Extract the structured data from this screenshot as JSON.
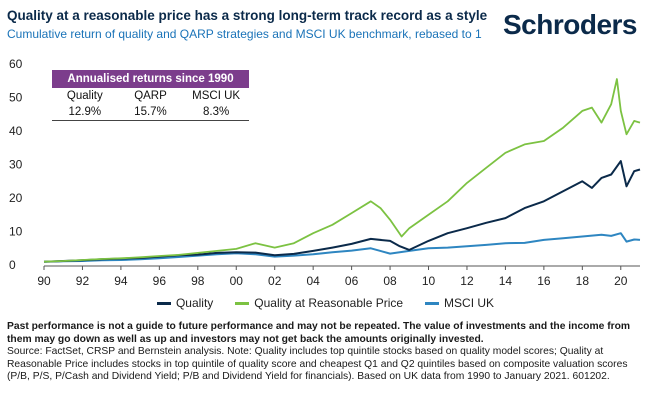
{
  "header": {
    "title": "Quality at a reasonable price has a strong long-term track record as a style",
    "subtitle": "Cumulative return of quality and QARP strategies and MSCI UK benchmark, rebased to 1",
    "brand": "Schroders"
  },
  "returns_table": {
    "heading": "Annualised returns since 1990",
    "columns": [
      "Quality",
      "QARP",
      "MSCI UK"
    ],
    "values": [
      "12.9%",
      "15.7%",
      "8.3%"
    ]
  },
  "footer": {
    "disclaimer": "Past performance is not a guide to future performance and may not be repeated. The value of investments and the income from them may go down as well as up and investors may not get back the amounts originally invested.",
    "source": "Source: FactSet, CRSP and Bernstein analysis. Note: Quality includes top quintile stocks based on quality model scores; Quality at Reasonable Price includes stocks in top quintile of quality score and cheapest Q1 and Q2 quintiles based on composite valuation scores (P/B, P/S, P/Cash and Dividend Yield; P/B and Dividend Yield for financials). Based on UK data from 1990 to January 2021. 601202."
  },
  "colors": {
    "quality": "#0b2a4a",
    "qarp": "#7cc242",
    "msci": "#2e86c1",
    "table_header": "#7c3d8c"
  },
  "chart_data": {
    "type": "line",
    "title": "",
    "xlabel": "",
    "ylabel": "",
    "xlim": [
      1990,
      2021
    ],
    "ylim": [
      0,
      60
    ],
    "x_ticks": [
      1990,
      1992,
      1994,
      1996,
      1998,
      2000,
      2002,
      2004,
      2006,
      2008,
      2010,
      2012,
      2014,
      2016,
      2018,
      2020
    ],
    "x_tick_labels": [
      "90",
      "92",
      "94",
      "96",
      "98",
      "00",
      "02",
      "04",
      "06",
      "08",
      "10",
      "12",
      "14",
      "16",
      "18",
      "20"
    ],
    "y_ticks": [
      0,
      10,
      20,
      30,
      40,
      50,
      60
    ],
    "grid": false,
    "legend": "bottom",
    "series": [
      {
        "name": "Quality",
        "color": "#0b2a4a",
        "x": [
          1990,
          1991,
          1992,
          1993,
          1994,
          1995,
          1996,
          1997,
          1998,
          1999,
          2000,
          2001,
          2002,
          2003,
          2004,
          2005,
          2006,
          2007,
          2008,
          2008.5,
          2009,
          2010,
          2011,
          2012,
          2013,
          2014,
          2015,
          2016,
          2017,
          2018,
          2018.5,
          2019,
          2019.5,
          2020,
          2020.3,
          2020.7,
          2021
        ],
        "y": [
          1,
          1.2,
          1.4,
          1.7,
          1.9,
          2.1,
          2.5,
          2.9,
          3.1,
          3.6,
          3.8,
          3.7,
          2.9,
          3.3,
          4.2,
          5.2,
          6.3,
          7.8,
          7.2,
          5.6,
          4.5,
          7.2,
          9.5,
          11,
          12.6,
          14,
          17,
          19,
          22,
          25,
          23,
          26,
          27,
          31,
          23.5,
          28,
          28.5
        ]
      },
      {
        "name": "Quality at Reasonable Price",
        "color": "#7cc242",
        "x": [
          1990,
          1991,
          1992,
          1993,
          1994,
          1995,
          1996,
          1997,
          1998,
          1999,
          2000,
          2001,
          2002,
          2003,
          2004,
          2005,
          2006,
          2007,
          2007.5,
          2008,
          2008.6,
          2009,
          2010,
          2011,
          2012,
          2013,
          2014,
          2015,
          2016,
          2017,
          2018,
          2018.5,
          2019,
          2019.5,
          2019.8,
          2020,
          2020.3,
          2020.7,
          2021
        ],
        "y": [
          1,
          1.2,
          1.5,
          1.8,
          2,
          2.3,
          2.7,
          3,
          3.6,
          4.2,
          4.8,
          6.5,
          5.2,
          6.5,
          9.5,
          12,
          15.5,
          19,
          17,
          13.5,
          8.5,
          11,
          15,
          19,
          24.5,
          29,
          33.5,
          36,
          37,
          41,
          46,
          47,
          42.5,
          48,
          55.5,
          46,
          39,
          43,
          42.5
        ]
      },
      {
        "name": "MSCI UK",
        "color": "#2e86c1",
        "x": [
          1990,
          1991,
          1992,
          1993,
          1994,
          1995,
          1996,
          1997,
          1998,
          1999,
          2000,
          2001,
          2002,
          2003,
          2004,
          2005,
          2006,
          2007,
          2008,
          2009,
          2010,
          2011,
          2012,
          2013,
          2014,
          2015,
          2016,
          2017,
          2018,
          2019,
          2019.5,
          2020,
          2020.3,
          2020.7,
          2021
        ],
        "y": [
          1,
          1.1,
          1.2,
          1.4,
          1.5,
          1.7,
          2,
          2.4,
          2.8,
          3.2,
          3.5,
          3.2,
          2.5,
          2.8,
          3.2,
          3.8,
          4.3,
          5,
          3.4,
          4.2,
          5,
          5.2,
          5.6,
          6,
          6.5,
          6.6,
          7.5,
          8,
          8.5,
          9,
          8.7,
          9.5,
          7,
          7.6,
          7.5
        ]
      }
    ]
  }
}
